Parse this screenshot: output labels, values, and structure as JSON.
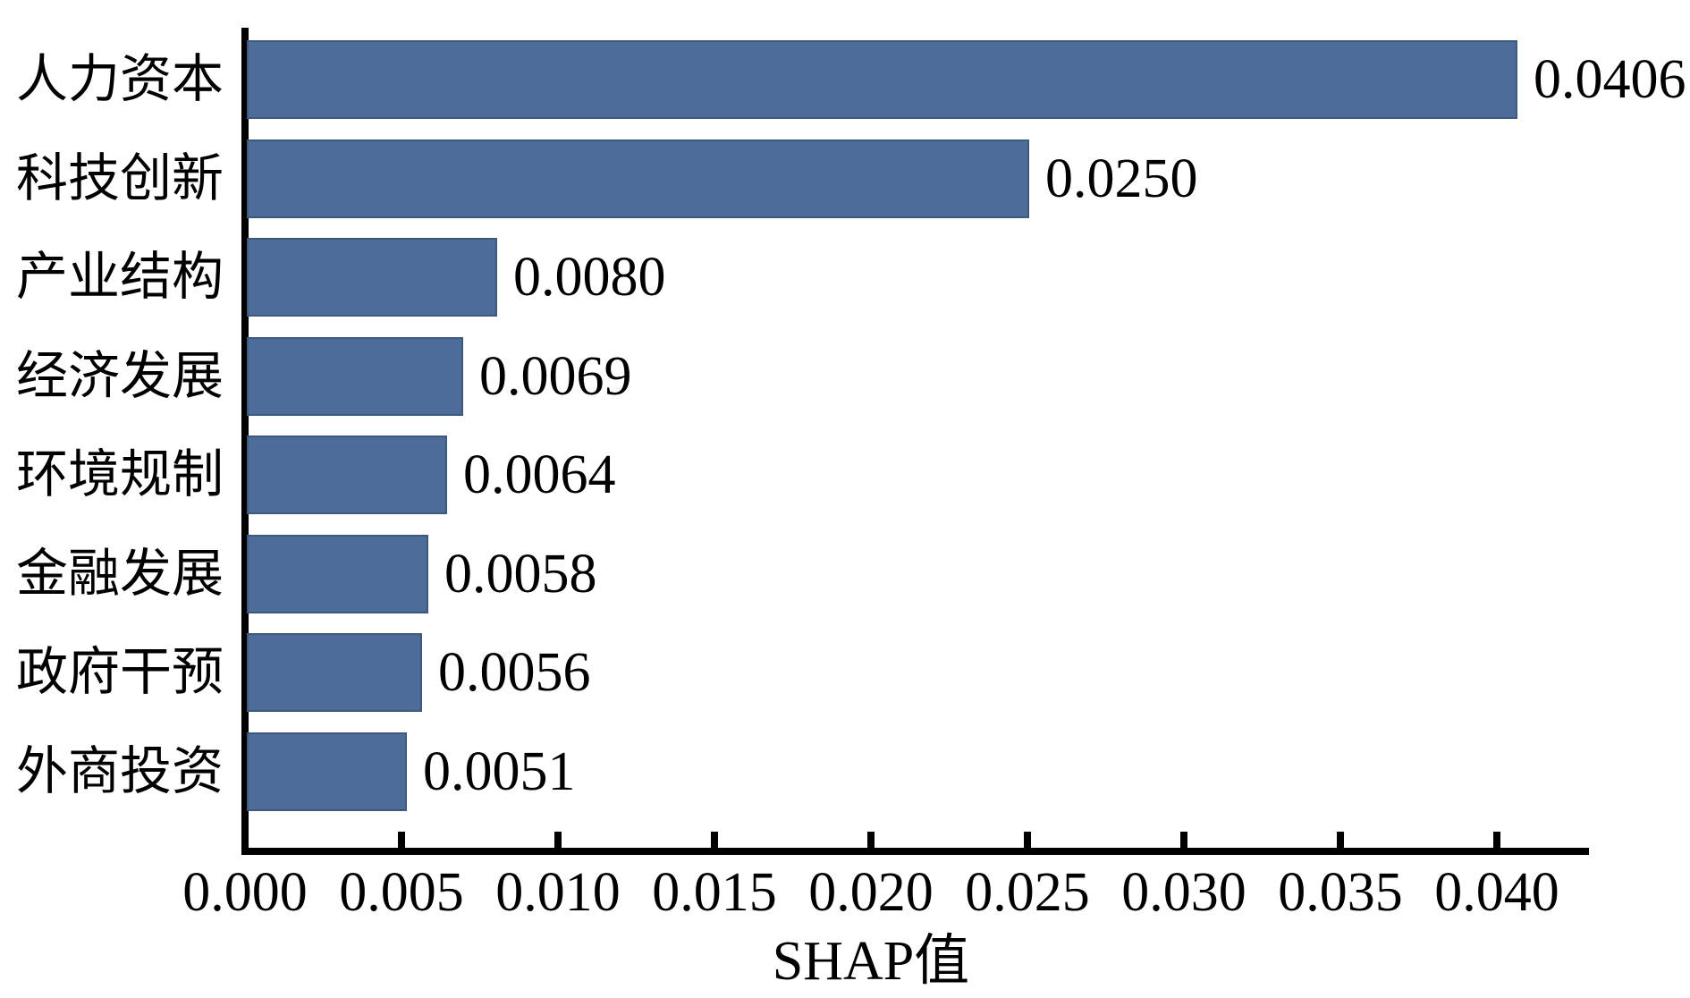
{
  "chart_data": {
    "type": "bar",
    "orientation": "horizontal",
    "title": "",
    "xlabel": "SHAP值",
    "ylabel": "",
    "categories": [
      "人力资本",
      "科技创新",
      "产业结构",
      "经济发展",
      "环境规制",
      "金融发展",
      "政府干预",
      "外商投资"
    ],
    "values": [
      0.0406,
      0.025,
      0.008,
      0.0069,
      0.0064,
      0.0058,
      0.0056,
      0.0051
    ],
    "value_labels": [
      "0.0406",
      "0.0250",
      "0.0080",
      "0.0069",
      "0.0064",
      "0.0058",
      "0.0056",
      "0.0051"
    ],
    "x_ticks": [
      0.0,
      0.005,
      0.01,
      0.015,
      0.02,
      0.025,
      0.03,
      0.035,
      0.04
    ],
    "x_tick_labels": [
      "0.000",
      "0.005",
      "0.010",
      "0.015",
      "0.020",
      "0.025",
      "0.030",
      "0.035",
      "0.040"
    ],
    "xlim": [
      0.0,
      0.043
    ],
    "grid": false,
    "legend": false,
    "bar_color": "#4d6c99",
    "bar_border_color": "#3d5a7e",
    "axis_color": "#000000",
    "text_color": "#000000",
    "background_color": "#ffffff"
  }
}
